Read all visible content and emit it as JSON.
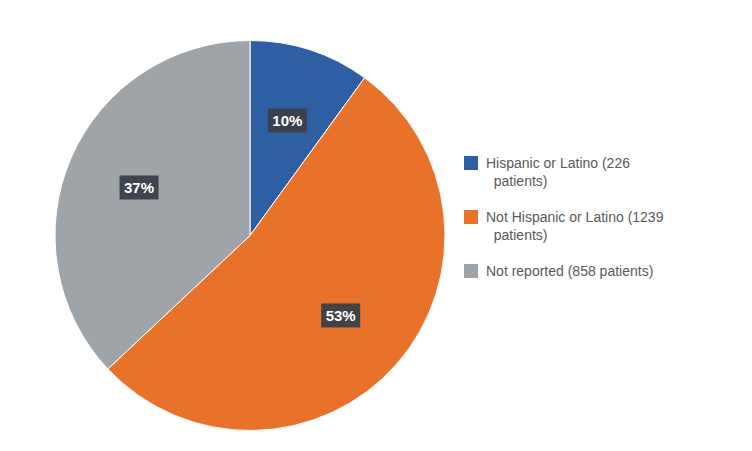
{
  "chart_data": {
    "type": "pie",
    "categories": [
      "Hispanic or Latino (226\n  patients)",
      "Not Hispanic or Latino (1239\n  patients)",
      "Not reported (858 patients)"
    ],
    "values": [
      10,
      53,
      37
    ],
    "colors": [
      "#2E5FA3",
      "#E8722A",
      "#9EA4A8"
    ],
    "value_labels": [
      "10%",
      "53%",
      "37%"
    ],
    "data_labels": true,
    "legend": "right"
  }
}
